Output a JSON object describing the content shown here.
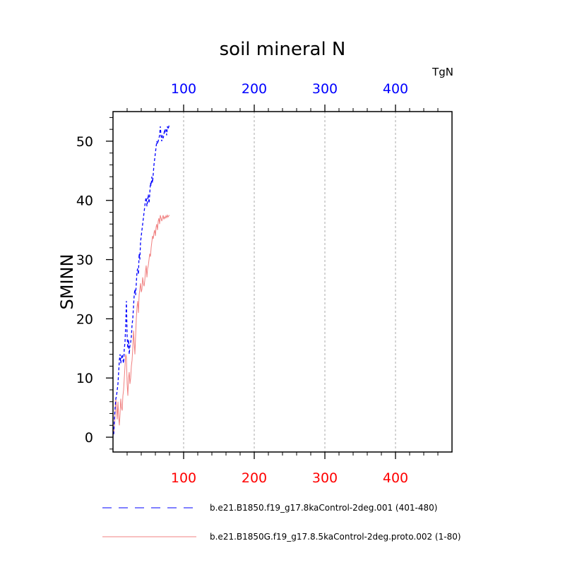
{
  "chart_data": {
    "type": "line",
    "title": "soil mineral N",
    "ylabel": "SMINN",
    "units": "TgN",
    "xlim": [
      0,
      480
    ],
    "ylim": [
      -2.5,
      55
    ],
    "x_ticks": [
      100,
      200,
      300,
      400
    ],
    "x_tick_labels_top": [
      "100",
      "200",
      "300",
      "400"
    ],
    "x_tick_labels_bottom": [
      "100",
      "200",
      "300",
      "400"
    ],
    "y_ticks": [
      0,
      10,
      20,
      30,
      40,
      50
    ],
    "y_tick_labels": [
      "0",
      "10",
      "20",
      "30",
      "40",
      "50"
    ],
    "grid": "vertical dashed at major x ticks",
    "legend_position": "bottom",
    "top_axis_color": "#0000ff",
    "bottom_axis_color": "#ff0000",
    "series": [
      {
        "name": "b.e21.B1850.f19_g17.8kaControl-2deg.001 (401-480)",
        "color": "#0000ff",
        "style": "dashed",
        "x": [
          1,
          2,
          3,
          4,
          5,
          6,
          7,
          8,
          9,
          10,
          11,
          12,
          13,
          14,
          15,
          16,
          17,
          18,
          19,
          20,
          21,
          22,
          23,
          24,
          25,
          26,
          27,
          28,
          29,
          30,
          31,
          32,
          33,
          34,
          35,
          36,
          37,
          38,
          39,
          40,
          41,
          42,
          43,
          44,
          45,
          46,
          47,
          48,
          49,
          50,
          51,
          52,
          53,
          54,
          55,
          56,
          57,
          58,
          59,
          60,
          61,
          62,
          63,
          64,
          65,
          66,
          67,
          68,
          69,
          70,
          71,
          72,
          73,
          74,
          75,
          76,
          77,
          78,
          79,
          80
        ],
        "values": [
          0.5,
          3,
          5,
          6.5,
          7,
          8,
          9,
          11,
          13,
          14,
          12.5,
          13.5,
          14,
          13,
          12.5,
          15,
          16,
          19,
          23,
          17,
          15,
          16.5,
          14,
          15.5,
          16,
          17,
          19,
          20,
          22,
          24,
          25,
          24,
          26,
          28,
          28.5,
          27.5,
          31,
          30,
          33,
          34,
          35,
          36,
          37,
          38,
          39,
          40,
          40.5,
          39,
          40,
          41,
          39.5,
          41,
          43,
          42.5,
          44,
          43,
          44.5,
          46,
          47,
          48,
          49,
          50,
          49.5,
          50,
          50.5,
          51,
          52.5,
          51,
          50,
          51,
          50.5,
          51,
          52,
          51.5,
          52,
          51,
          52.5,
          52,
          52.5,
          52.8
        ]
      },
      {
        "name": "b.e21.B1850G.f19_g17.8.5kaControl-2deg.proto.002 (1-80)",
        "color": "#f08080",
        "style": "solid",
        "x": [
          1,
          2,
          3,
          4,
          5,
          6,
          7,
          8,
          9,
          10,
          11,
          12,
          13,
          14,
          15,
          16,
          17,
          18,
          19,
          20,
          21,
          22,
          23,
          24,
          25,
          26,
          27,
          28,
          29,
          30,
          31,
          32,
          33,
          34,
          35,
          36,
          37,
          38,
          39,
          40,
          41,
          42,
          43,
          44,
          45,
          46,
          47,
          48,
          49,
          50,
          51,
          52,
          53,
          54,
          55,
          56,
          57,
          58,
          59,
          60,
          61,
          62,
          63,
          64,
          65,
          66,
          67,
          68,
          69,
          70,
          71,
          72,
          73,
          74,
          75,
          76,
          77,
          78,
          79,
          80
        ],
        "values": [
          0.5,
          2,
          4,
          6.5,
          5,
          3,
          6,
          3.5,
          2,
          4,
          6.5,
          5,
          4.5,
          7,
          8,
          10,
          12,
          14,
          13.5,
          9,
          7,
          10,
          11,
          9,
          10,
          12,
          13,
          15,
          18,
          16,
          14,
          17,
          20,
          22,
          23,
          21,
          24,
          25,
          26,
          24.5,
          25,
          27,
          26,
          25.5,
          26.5,
          28,
          29,
          27,
          28.5,
          29,
          30,
          31,
          30.5,
          32,
          33,
          34,
          33.5,
          34.5,
          35,
          34,
          35.5,
          36,
          35,
          36.5,
          37,
          36,
          37.5,
          37,
          36.5,
          37,
          37.5,
          36.8,
          37.2,
          37,
          37.4,
          37.1,
          37.5,
          37.2,
          37.4,
          37.5
        ]
      }
    ]
  }
}
